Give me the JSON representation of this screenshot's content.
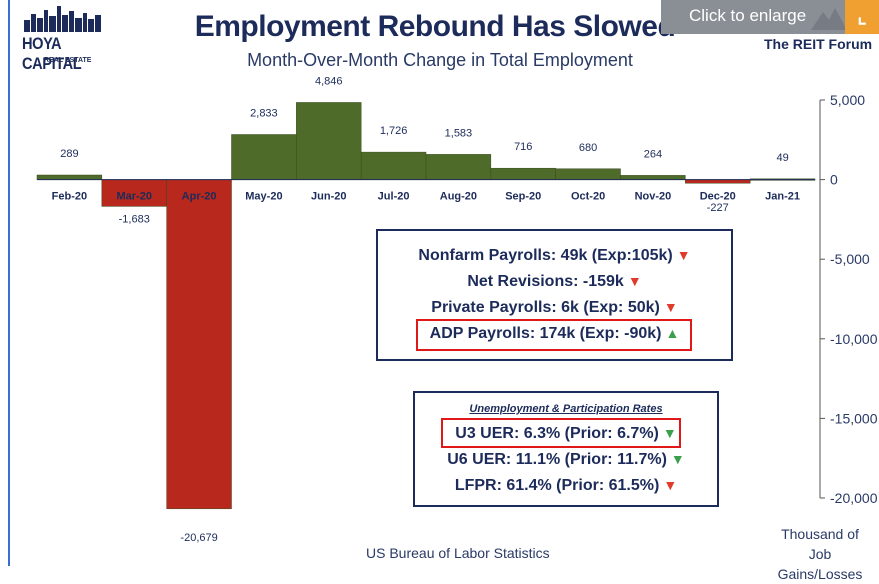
{
  "overlay": {
    "label": "Click to enlarge",
    "corner_icon": "expand-icon"
  },
  "logo": {
    "brand": "HOYA CAPITAL",
    "sub": "REAL ESTATE"
  },
  "header": {
    "title": "Employment Rebound Has Slowed",
    "subtitle": "Month-Over-Month Change in Total Employment",
    "publisher": "The REIT Forum"
  },
  "chart_data": {
    "type": "bar",
    "title": "Employment Rebound Has Slowed",
    "subtitle": "Month-Over-Month Change in Total Employment",
    "categories": [
      "Feb-20",
      "Mar-20",
      "Apr-20",
      "May-20",
      "Jun-20",
      "Jul-20",
      "Aug-20",
      "Sep-20",
      "Oct-20",
      "Nov-20",
      "Dec-20",
      "Jan-21"
    ],
    "values": [
      289,
      -1683,
      -20679,
      2833,
      4846,
      1726,
      1583,
      716,
      680,
      264,
      -227,
      49
    ],
    "data_labels": [
      "289",
      "-1,683",
      "-20,679",
      "2,833",
      "4,846",
      "1,726",
      "1,583",
      "716",
      "680",
      "264",
      "-227",
      "49"
    ],
    "ylim": [
      -20000,
      5000
    ],
    "yticks": [
      5000,
      0,
      -5000,
      -10000,
      -15000,
      -20000
    ],
    "ytick_labels": [
      "5,000",
      "0",
      "-5,000",
      "-10,000",
      "-15,000",
      "-20,000"
    ],
    "ylabel": "Thousand of Job Gains/Losses",
    "yaxis_side": "right",
    "colors": {
      "positive": "#4f6b2a",
      "negative": "#b8281c"
    }
  },
  "payrolls_box": {
    "lines": [
      {
        "text": "Nonfarm Payrolls: 49k (Exp:105k)",
        "trend": "down"
      },
      {
        "text": "Net Revisions: -159k",
        "trend": "down"
      },
      {
        "text": "Private Payrolls: 6k (Exp: 50k)",
        "trend": "down"
      },
      {
        "text": "ADP Payrolls: 174k (Exp: -90k)",
        "trend": "up"
      }
    ]
  },
  "rates_box": {
    "heading": "Unemployment & Participation Rates",
    "lines": [
      {
        "text": "U3 UER: 6.3% (Prior: 6.7%)",
        "trend": "down-good"
      },
      {
        "text": "U6 UER: 11.1% (Prior: 11.7%)",
        "trend": "down-good"
      },
      {
        "text": "LFPR: 61.4% (Prior: 61.5%)",
        "trend": "down"
      }
    ]
  },
  "footer": {
    "source": "US Bureau of Labor Statistics",
    "unit_line1": "Thousand of Job",
    "unit_line2": "Gains/Losses"
  },
  "triangles": {
    "down": "▼",
    "up": "▲"
  }
}
